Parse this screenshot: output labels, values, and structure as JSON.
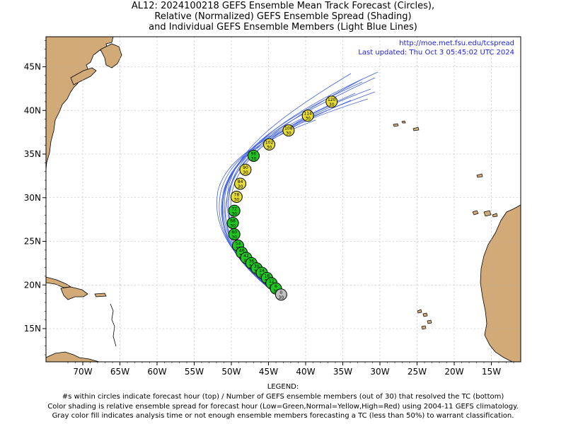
{
  "title": {
    "line1": "AL12: 2024100218 GEFS Ensemble Mean Track Forecast (Circles),",
    "line2": "Relative (Normalized) GEFS Ensemble Spread (Shading)",
    "line3": "and Individual GEFS Ensemble Members (Light Blue Lines)"
  },
  "header_url": "http://moe.met.fsu.edu/tcspread",
  "last_updated": "Last updated: Thu Oct 3 05:45:02 UTC 2024",
  "x_ticks": [
    {
      "lon": -70,
      "label": "70W"
    },
    {
      "lon": -65,
      "label": "65W"
    },
    {
      "lon": -60,
      "label": "60W"
    },
    {
      "lon": -55,
      "label": "55W"
    },
    {
      "lon": -50,
      "label": "50W"
    },
    {
      "lon": -45,
      "label": "45W"
    },
    {
      "lon": -40,
      "label": "40W"
    },
    {
      "lon": -35,
      "label": "35W"
    },
    {
      "lon": -30,
      "label": "30W"
    },
    {
      "lon": -25,
      "label": "25W"
    },
    {
      "lon": -20,
      "label": "20W"
    },
    {
      "lon": -15,
      "label": "15W"
    }
  ],
  "y_ticks": [
    {
      "lat": 15,
      "label": "15N"
    },
    {
      "lat": 20,
      "label": "20N"
    },
    {
      "lat": 25,
      "label": "25N"
    },
    {
      "lat": 30,
      "label": "30N"
    },
    {
      "lat": 35,
      "label": "35N"
    },
    {
      "lat": 40,
      "label": "40N"
    },
    {
      "lat": 45,
      "label": "45N"
    }
  ],
  "colors": {
    "land": "#D2AA78",
    "ocean": "#ffffff",
    "grid": "#b4b4b4",
    "member_track": "#4060e0",
    "header_text": "#1e1ee6",
    "low_spread": "#1ec81e",
    "normal_spread": "#e6dc32",
    "analysis": "#c0c0c0"
  },
  "track": [
    {
      "hour": "0",
      "members": "30",
      "lat": 18.9,
      "lon": -43.3,
      "spread": "analysis"
    },
    {
      "hour": "6",
      "members": "30",
      "lat": 19.6,
      "lon": -44.0,
      "spread": "low"
    },
    {
      "hour": "12",
      "members": "30",
      "lat": 20.2,
      "lon": -44.6,
      "spread": "low"
    },
    {
      "hour": "18",
      "members": "30",
      "lat": 20.8,
      "lon": -45.2,
      "spread": "low"
    },
    {
      "hour": "24",
      "members": "30",
      "lat": 21.4,
      "lon": -45.9,
      "spread": "low"
    },
    {
      "hour": "30",
      "members": "30",
      "lat": 21.9,
      "lon": -46.6,
      "spread": "low"
    },
    {
      "hour": "36",
      "members": "30",
      "lat": 22.5,
      "lon": -47.3,
      "spread": "low"
    },
    {
      "hour": "42",
      "members": "30",
      "lat": 23.1,
      "lon": -48.0,
      "spread": "low"
    },
    {
      "hour": "48",
      "members": "30",
      "lat": 23.7,
      "lon": -48.6,
      "spread": "low"
    },
    {
      "hour": "54",
      "members": "30",
      "lat": 24.5,
      "lon": -49.1,
      "spread": "low"
    },
    {
      "hour": "60",
      "members": "30",
      "lat": 25.8,
      "lon": -49.6,
      "spread": "low"
    },
    {
      "hour": "66",
      "members": "30",
      "lat": 27.1,
      "lon": -49.8,
      "spread": "low"
    },
    {
      "hour": "72",
      "members": "30",
      "lat": 28.5,
      "lon": -49.6,
      "spread": "low"
    },
    {
      "hour": "78",
      "members": "30",
      "lat": 30.1,
      "lon": -49.3,
      "spread": "normal"
    },
    {
      "hour": "84",
      "members": "30",
      "lat": 31.6,
      "lon": -48.8,
      "spread": "normal"
    },
    {
      "hour": "90",
      "members": "30",
      "lat": 33.2,
      "lon": -48.1,
      "spread": "normal"
    },
    {
      "hour": "96",
      "members": "30",
      "lat": 34.8,
      "lon": -47.0,
      "spread": "low"
    },
    {
      "hour": "102",
      "members": "30",
      "lat": 36.1,
      "lon": -44.9,
      "spread": "normal"
    },
    {
      "hour": "108",
      "members": "30",
      "lat": 37.7,
      "lon": -42.3,
      "spread": "normal"
    },
    {
      "hour": "114",
      "members": "30",
      "lat": 39.4,
      "lon": -39.7,
      "spread": "normal"
    },
    {
      "hour": "120",
      "members": "30",
      "lat": 41.0,
      "lon": -36.5,
      "spread": "normal"
    }
  ],
  "legend": {
    "heading": "LEGEND:",
    "line1": "#s within circles indicate forecast hour (top) / Number of GEFS ensemble members (out of 30) that resolved the TC (bottom)",
    "line2": "Color shading is relative ensemble spread for forecast hour (Low=Green,Normal=Yellow,High=Red) using 2004-11 GEFS climatology.",
    "line3": "Gray color fill indicates analysis time or not enough ensemble members forecasting a TC (less than 50%) to warrant classification."
  }
}
